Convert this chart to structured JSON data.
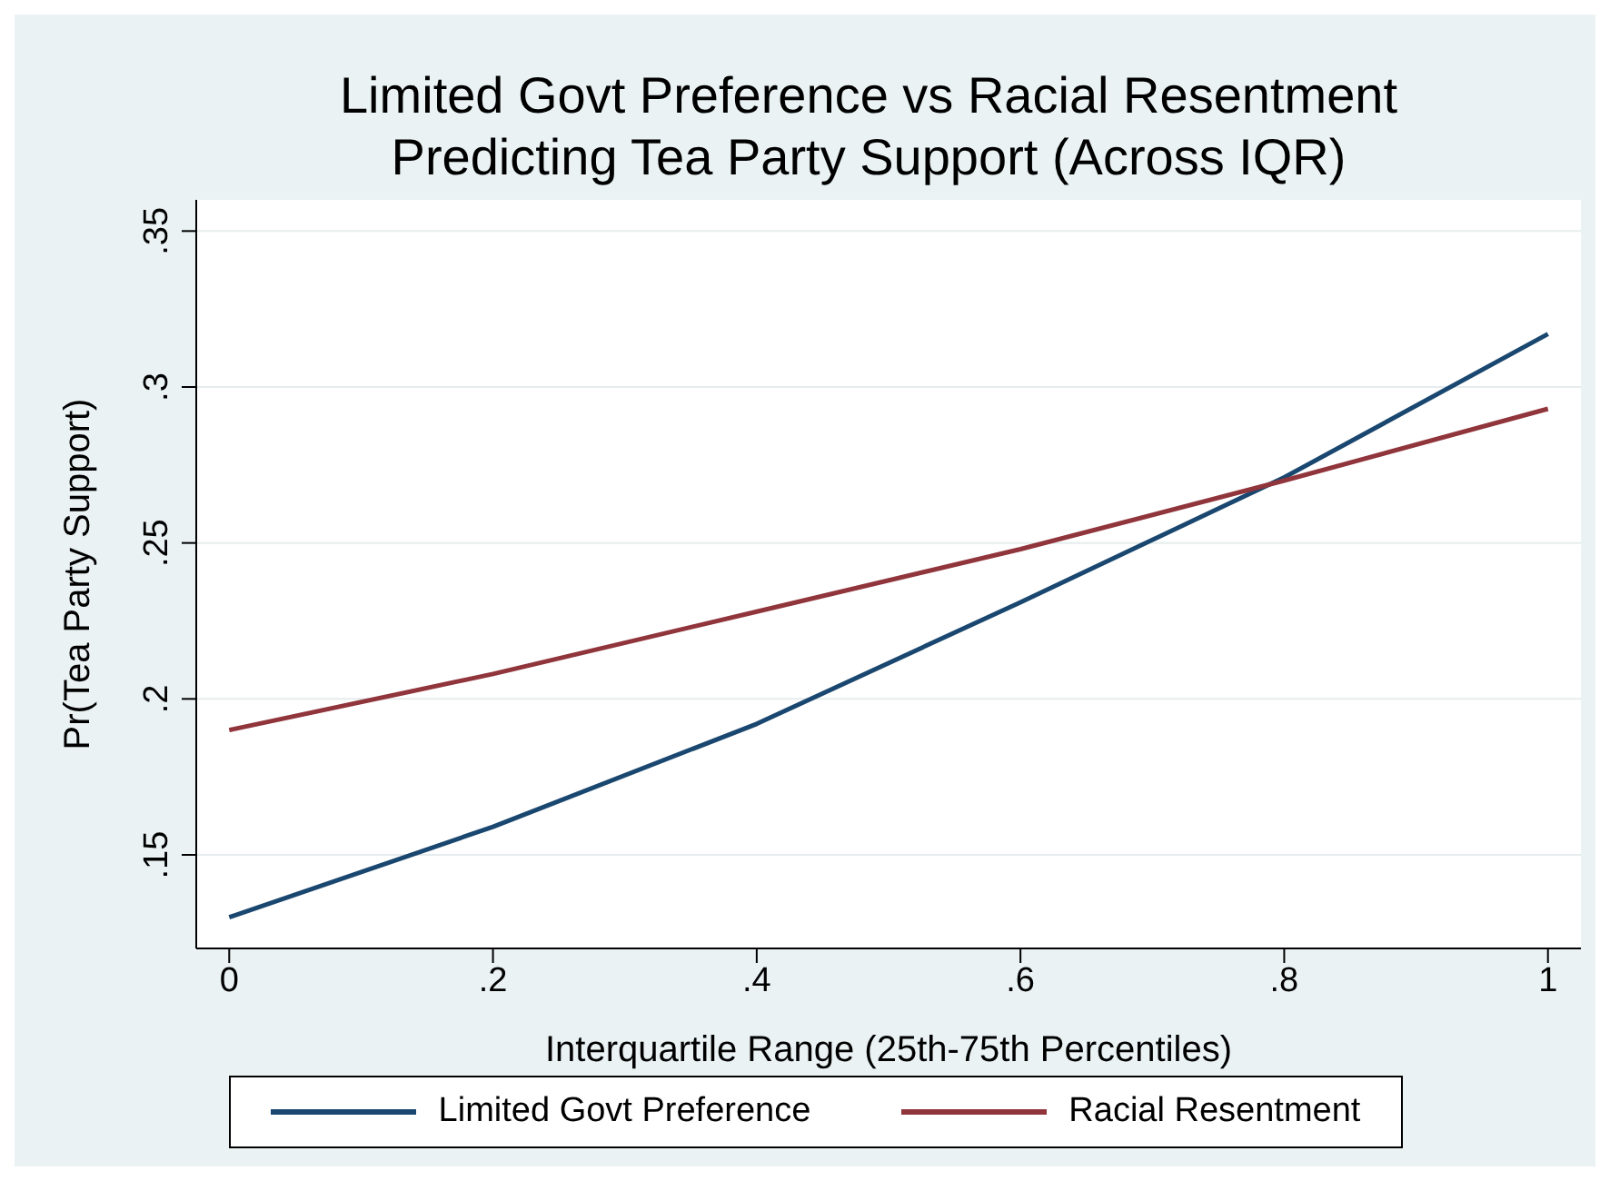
{
  "chart_data": {
    "type": "line",
    "title": "Limited Govt Preference vs Racial Resentment Predicting Tea Party Support (Across IQR)",
    "xlabel": "Interquartile Range (25th-75th Percentiles)",
    "ylabel": "Pr(Tea Party Support)",
    "x": [
      0,
      0.2,
      0.4,
      0.6,
      0.8,
      1
    ],
    "series": [
      {
        "name": "Limited Govt Preference",
        "color": "#1a476f",
        "values": [
          0.13,
          0.159,
          0.192,
          0.231,
          0.271,
          0.317
        ]
      },
      {
        "name": "Racial Resentment",
        "color": "#90353b",
        "values": [
          0.19,
          0.208,
          0.228,
          0.248,
          0.27,
          0.293
        ]
      }
    ],
    "xlim": [
      -0.025,
      1.025
    ],
    "ylim": [
      0.12,
      0.36
    ],
    "xticks": [
      0,
      {
        "value": 0.2,
        "label": ".2"
      },
      {
        "value": 0.4,
        "label": ".4"
      },
      {
        "value": 0.6,
        "label": ".6"
      },
      {
        "value": 0.8,
        "label": ".8"
      },
      1
    ],
    "yticks": [
      {
        "value": 0.15,
        "label": ".15"
      },
      {
        "value": 0.2,
        "label": ".2"
      },
      {
        "value": 0.25,
        "label": ".25"
      },
      {
        "value": 0.3,
        "label": ".3"
      },
      {
        "value": 0.35,
        "label": ".35"
      }
    ],
    "grid": "y",
    "legend": "bottom",
    "marker": "none",
    "line_style": "solid"
  }
}
